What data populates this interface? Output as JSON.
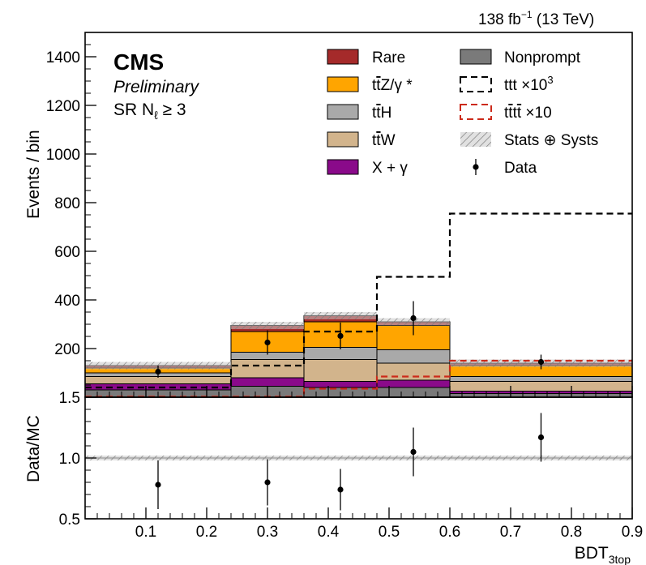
{
  "chart_data": {
    "type": "bar",
    "lumi_label": "138 fb",
    "lumi_exp": "−1",
    "energy_label": "(13 TeV)",
    "experiment": "CMS",
    "status": "Preliminary",
    "region_prefix": "SR N",
    "region_sub": "ℓ",
    "region_suffix": " ≥ 3",
    "xlabel_main": "BDT",
    "xlabel_sub": "3top",
    "ylabel_top": "Events / bin",
    "ylabel_bottom": "Data/MC",
    "bin_edges": [
      0.0,
      0.24,
      0.36,
      0.48,
      0.6,
      0.9
    ],
    "xlim": [
      0.0,
      0.9
    ],
    "ylim_top": [
      0,
      1500
    ],
    "ylim_bottom": [
      0.5,
      1.5
    ],
    "x_ticks": [
      "0.1",
      "0.2",
      "0.3",
      "0.4",
      "0.5",
      "0.6",
      "0.7",
      "0.8",
      "0.9"
    ],
    "x_tick_values": [
      0.1,
      0.2,
      0.3,
      0.4,
      0.5,
      0.6,
      0.7,
      0.8,
      0.9
    ],
    "y_ticks_top": [
      "200",
      "400",
      "600",
      "800",
      "1000",
      "1200",
      "1400"
    ],
    "y_tick_values_top": [
      200,
      400,
      600,
      800,
      1000,
      1200,
      1400
    ],
    "y_ticks_bottom": [
      "0.5",
      "1.0",
      "1.5"
    ],
    "y_tick_values_bottom": [
      0.5,
      1.0,
      1.5
    ],
    "stack": [
      {
        "key": "nonprompt",
        "color": "#7a7a7a",
        "values": [
          30,
          45,
          40,
          40,
          15
        ]
      },
      {
        "key": "xgamma",
        "color": "#8a0a8a",
        "values": [
          25,
          35,
          25,
          30,
          10
        ]
      },
      {
        "key": "ttw",
        "color": "#d2b48c",
        "values": [
          30,
          75,
          90,
          70,
          40
        ]
      },
      {
        "key": "tth",
        "color": "#a9a9a9",
        "values": [
          15,
          30,
          50,
          55,
          20
        ]
      },
      {
        "key": "ttz",
        "color": "#ffa500",
        "values": [
          20,
          85,
          105,
          100,
          45
        ]
      },
      {
        "key": "rare",
        "color": "#a52a2a",
        "values": [
          10,
          25,
          25,
          15,
          10
        ]
      }
    ],
    "band_halfwidth": 15,
    "ttt_values": [
      40,
      130,
      270,
      495,
      755
    ],
    "tttt_values": [
      2,
      2,
      35,
      85,
      150
    ],
    "data_points": [
      {
        "x": 0.12,
        "y": 105,
        "err": 10
      },
      {
        "x": 0.3,
        "y": 225,
        "err": 20
      },
      {
        "x": 0.42,
        "y": 252,
        "err": 22
      },
      {
        "x": 0.54,
        "y": 325,
        "err": 28
      },
      {
        "x": 0.75,
        "y": 145,
        "err": 12
      }
    ],
    "ratio_points": [
      {
        "x": 0.12,
        "y": 0.78,
        "err": 0.2
      },
      {
        "x": 0.3,
        "y": 0.8,
        "err": 0.19
      },
      {
        "x": 0.42,
        "y": 0.74,
        "err": 0.17
      },
      {
        "x": 0.54,
        "y": 1.05,
        "err": 0.2
      },
      {
        "x": 0.75,
        "y": 1.17,
        "err": 0.2
      }
    ],
    "ratio_band": [
      0.98,
      1.02
    ],
    "legend": [
      {
        "key": "rare",
        "parts": [
          {
            "t": "Rare",
            "o": false
          }
        ]
      },
      {
        "key": "ttz",
        "parts": [
          {
            "t": "t",
            "o": false
          },
          {
            "t": "t",
            "o": true
          },
          {
            "t": "Z/γ *",
            "o": false
          }
        ]
      },
      {
        "key": "tth",
        "parts": [
          {
            "t": "t",
            "o": false
          },
          {
            "t": "t",
            "o": true
          },
          {
            "t": "H",
            "o": false
          }
        ]
      },
      {
        "key": "ttw",
        "parts": [
          {
            "t": "t",
            "o": false
          },
          {
            "t": "t",
            "o": true
          },
          {
            "t": "W",
            "o": false
          }
        ]
      },
      {
        "key": "xgamma",
        "parts": [
          {
            "t": "X + γ",
            "o": false
          }
        ]
      },
      {
        "key": "nonprompt",
        "parts": [
          {
            "t": "Nonprompt",
            "o": false
          }
        ]
      },
      {
        "key": "ttt",
        "parts": [
          {
            "t": "ttt ×10",
            "o": false
          },
          {
            "t": "3",
            "sup": true
          }
        ]
      },
      {
        "key": "tttt",
        "parts": [
          {
            "t": "t",
            "o": false
          },
          {
            "t": "t",
            "o": true
          },
          {
            "t": "t",
            "o": false
          },
          {
            "t": "t",
            "o": true
          },
          {
            "t": " ×10",
            "o": false
          }
        ]
      },
      {
        "key": "band",
        "parts": [
          {
            "t": "Stats ",
            "o": false
          },
          {
            "t": "⊕",
            "o": false
          },
          {
            "t": " Systs",
            "o": false
          }
        ]
      },
      {
        "key": "data",
        "parts": [
          {
            "t": "Data",
            "o": false
          }
        ]
      }
    ],
    "ttt_color": "#000000",
    "tttt_color": "#cc2a1a",
    "band_color": "#9a9a9a"
  }
}
